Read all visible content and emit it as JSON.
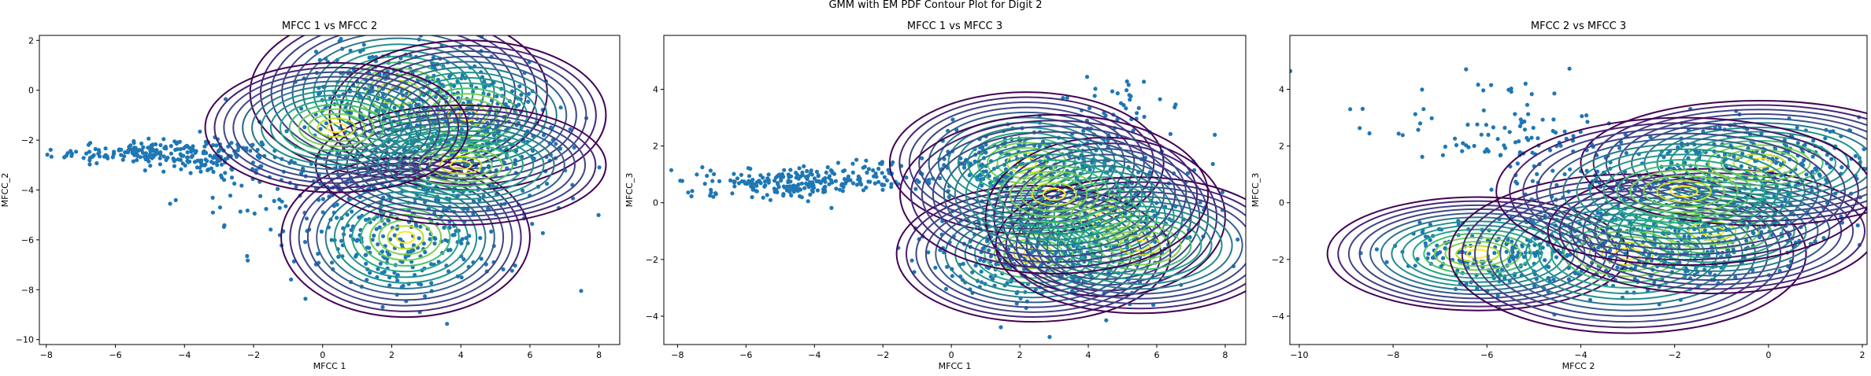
{
  "suptitle": "GMM with EM PDF Contour Plot for Digit 2",
  "chart_data": [
    {
      "type": "scatter",
      "title": "MFCC 1 vs MFCC 2",
      "xlabel": "MFCC 1",
      "ylabel": "MFCC_2",
      "xlim": [
        -8.2,
        8.6
      ],
      "ylim": [
        -10.2,
        2.2
      ],
      "xticks": [
        -8,
        -6,
        -4,
        -2,
        0,
        2,
        4,
        6,
        8
      ],
      "yticks": [
        -10,
        -8,
        -6,
        -4,
        -2,
        0,
        2
      ],
      "grid": false,
      "point_color": "#1f77b4",
      "contour_colormap": "viridis",
      "clusters": [
        {
          "center": [
            -5.2,
            -2.5
          ],
          "spread": [
            1.3,
            0.25
          ],
          "n": 160
        },
        {
          "center": [
            -3.0,
            -2.7
          ],
          "spread": [
            1.0,
            0.35
          ],
          "n": 90
        },
        {
          "center": [
            2.2,
            0.0
          ],
          "spread": [
            1.4,
            1.0
          ],
          "n": 220
        },
        {
          "center": [
            4.2,
            -1.0
          ],
          "spread": [
            1.3,
            1.0
          ],
          "n": 200
        },
        {
          "center": [
            3.5,
            -3.0
          ],
          "spread": [
            2.0,
            1.0
          ],
          "n": 220
        },
        {
          "center": [
            2.4,
            -5.8
          ],
          "spread": [
            1.5,
            1.3
          ],
          "n": 260
        },
        {
          "center": [
            -1.0,
            -4.2
          ],
          "spread": [
            1.5,
            1.2
          ],
          "n": 70
        }
      ],
      "gaussians": [
        {
          "center": [
            2.2,
            -0.1
          ],
          "radii": [
            4.3,
            3.4
          ]
        },
        {
          "center": [
            4.2,
            -1.0
          ],
          "radii": [
            4.0,
            3.0
          ]
        },
        {
          "center": [
            2.4,
            -5.9
          ],
          "radii": [
            3.6,
            3.2
          ]
        },
        {
          "center": [
            4.0,
            -3.0
          ],
          "radii": [
            4.2,
            2.4
          ]
        },
        {
          "center": [
            0.4,
            -1.5
          ],
          "radii": [
            3.8,
            2.6
          ]
        }
      ]
    },
    {
      "type": "scatter",
      "title": "MFCC 1 vs MFCC 3",
      "xlabel": "MFCC 1",
      "ylabel": "MFCC_3",
      "xlim": [
        -8.4,
        8.6
      ],
      "ylim": [
        -5.0,
        5.9
      ],
      "xticks": [
        -8,
        -6,
        -4,
        -2,
        0,
        2,
        4,
        6,
        8
      ],
      "yticks": [
        -4,
        -2,
        0,
        2,
        4
      ],
      "grid": false,
      "point_color": "#1f77b4",
      "contour_colormap": "viridis",
      "clusters": [
        {
          "center": [
            -5.0,
            0.7
          ],
          "spread": [
            1.2,
            0.25
          ],
          "n": 170
        },
        {
          "center": [
            -2.8,
            0.9
          ],
          "spread": [
            1.0,
            0.3
          ],
          "n": 90
        },
        {
          "center": [
            2.3,
            1.4
          ],
          "spread": [
            1.6,
            0.7
          ],
          "n": 240
        },
        {
          "center": [
            2.3,
            -1.8
          ],
          "spread": [
            1.6,
            0.8
          ],
          "n": 240
        },
        {
          "center": [
            4.5,
            -0.5
          ],
          "spread": [
            1.5,
            1.1
          ],
          "n": 200
        },
        {
          "center": [
            5.2,
            3.6
          ],
          "spread": [
            1.0,
            0.5
          ],
          "n": 30
        }
      ],
      "gaussians": [
        {
          "center": [
            2.2,
            1.4
          ],
          "radii": [
            4.0,
            2.5
          ]
        },
        {
          "center": [
            2.4,
            -1.8
          ],
          "radii": [
            4.0,
            2.4
          ]
        },
        {
          "center": [
            4.5,
            -0.5
          ],
          "radii": [
            3.5,
            2.8
          ]
        },
        {
          "center": [
            5.5,
            -1.5
          ],
          "radii": [
            4.2,
            2.4
          ]
        },
        {
          "center": [
            3.0,
            0.3
          ],
          "radii": [
            4.5,
            2.8
          ]
        }
      ]
    },
    {
      "type": "scatter",
      "title": "MFCC 2 vs MFCC 3",
      "xlabel": "MFCC 2",
      "ylabel": "MFCC_3",
      "xlim": [
        -10.2,
        2.1
      ],
      "ylim": [
        -5.0,
        5.9
      ],
      "xticks": [
        -10,
        -8,
        -6,
        -4,
        -2,
        0,
        2
      ],
      "yticks": [
        -4,
        -2,
        0,
        2,
        4
      ],
      "grid": false,
      "point_color": "#1f77b4",
      "contour_colormap": "viridis",
      "clusters": [
        {
          "center": [
            -6.0,
            -1.8
          ],
          "spread": [
            1.0,
            0.6
          ],
          "n": 160
        },
        {
          "center": [
            -3.0,
            -1.8
          ],
          "spread": [
            1.3,
            0.8
          ],
          "n": 200
        },
        {
          "center": [
            -1.2,
            -1.0
          ],
          "spread": [
            1.3,
            0.8
          ],
          "n": 200
        },
        {
          "center": [
            -0.2,
            1.4
          ],
          "spread": [
            1.4,
            0.7
          ],
          "n": 240
        },
        {
          "center": [
            -2.5,
            0.5
          ],
          "spread": [
            1.5,
            1.0
          ],
          "n": 150
        },
        {
          "center": [
            -6.0,
            2.5
          ],
          "spread": [
            1.6,
            1.0
          ],
          "n": 90
        }
      ],
      "gaussians": [
        {
          "center": [
            -6.2,
            -1.8
          ],
          "radii": [
            3.2,
            2.0
          ]
        },
        {
          "center": [
            -3.0,
            -1.8
          ],
          "radii": [
            3.8,
            2.8
          ]
        },
        {
          "center": [
            -1.2,
            -1.0
          ],
          "radii": [
            3.5,
            2.2
          ]
        },
        {
          "center": [
            -0.2,
            1.4
          ],
          "radii": [
            3.8,
            2.2
          ]
        },
        {
          "center": [
            -1.8,
            0.4
          ],
          "radii": [
            4.0,
            2.6
          ]
        }
      ]
    }
  ]
}
